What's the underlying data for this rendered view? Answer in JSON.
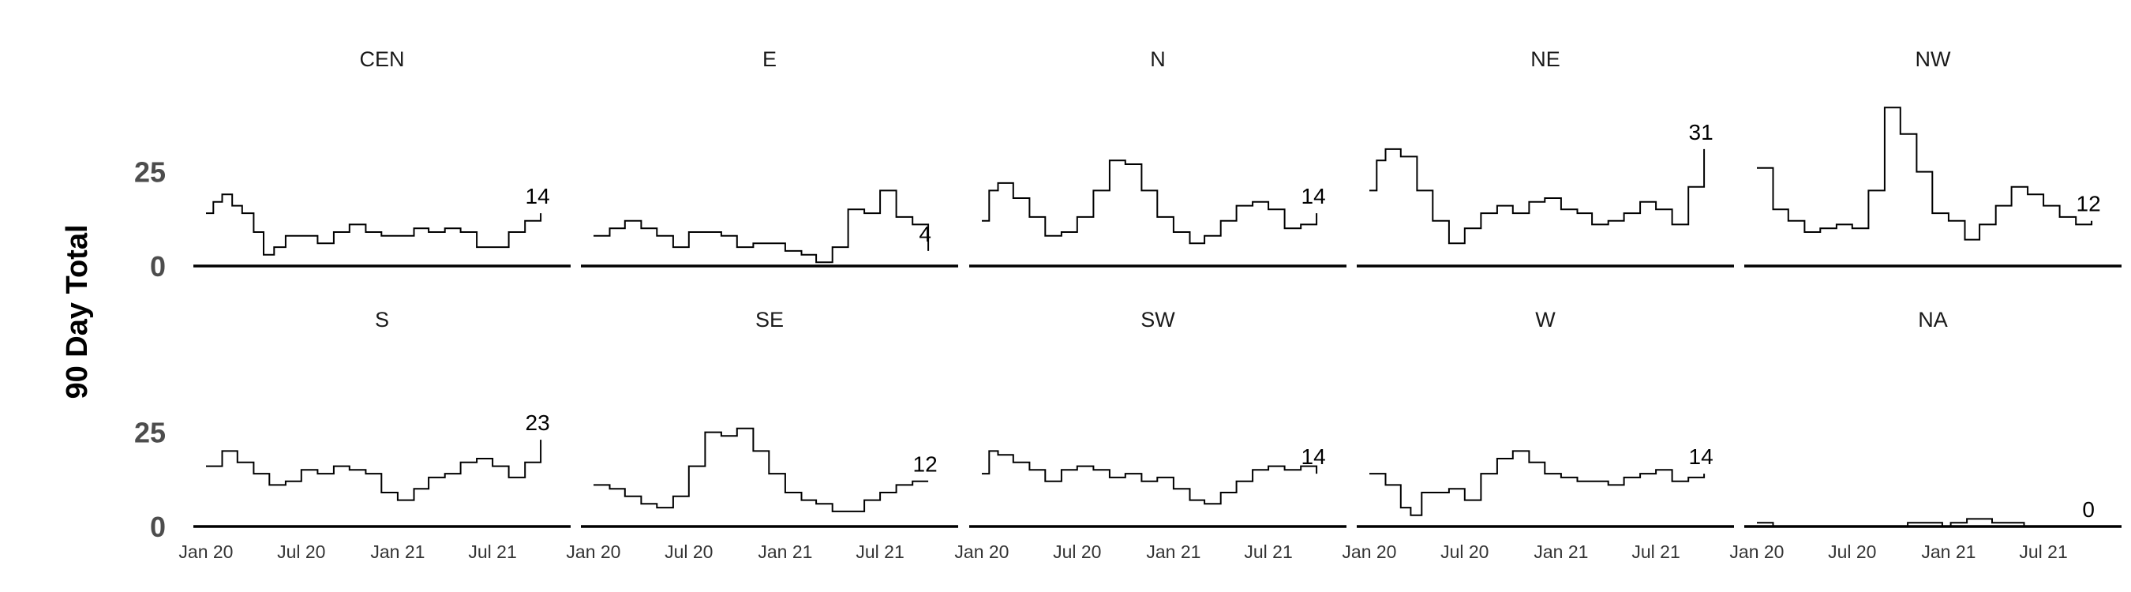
{
  "chart_data": {
    "type": "line",
    "layout": "facet-grid",
    "ylabel": "90 Day Total",
    "ylim": [
      0,
      45
    ],
    "y_ticks": [
      {
        "value": 0,
        "label": "0"
      },
      {
        "value": 25,
        "label": "25"
      }
    ],
    "x_range": [
      "2019-12-20",
      "2021-11-15"
    ],
    "x_ticks": [
      {
        "date": "2020-01-01",
        "label": "Jan 20"
      },
      {
        "date": "2020-07-01",
        "label": "Jul 20"
      },
      {
        "date": "2021-01-01",
        "label": "Jan 21"
      },
      {
        "date": "2021-07-01",
        "label": "Jul 21"
      }
    ],
    "grid": false,
    "legend": "none",
    "facets": [
      {
        "title": "CEN",
        "end_label": "14",
        "series": [
          [
            "2020-01-01",
            14
          ],
          [
            "2020-01-15",
            17
          ],
          [
            "2020-02-01",
            19
          ],
          [
            "2020-02-20",
            16
          ],
          [
            "2020-03-10",
            14
          ],
          [
            "2020-04-01",
            9
          ],
          [
            "2020-04-20",
            3
          ],
          [
            "2020-05-10",
            5
          ],
          [
            "2020-06-01",
            8
          ],
          [
            "2020-07-01",
            8
          ],
          [
            "2020-08-01",
            6
          ],
          [
            "2020-09-01",
            9
          ],
          [
            "2020-10-01",
            11
          ],
          [
            "2020-11-01",
            9
          ],
          [
            "2020-12-01",
            8
          ],
          [
            "2021-01-01",
            8
          ],
          [
            "2021-02-01",
            10
          ],
          [
            "2021-03-01",
            9
          ],
          [
            "2021-04-01",
            10
          ],
          [
            "2021-05-01",
            9
          ],
          [
            "2021-06-01",
            5
          ],
          [
            "2021-07-01",
            5
          ],
          [
            "2021-08-01",
            9
          ],
          [
            "2021-09-01",
            12
          ],
          [
            "2021-10-01",
            14
          ]
        ]
      },
      {
        "title": "E",
        "end_label": "4",
        "series": [
          [
            "2020-01-01",
            8
          ],
          [
            "2020-02-01",
            10
          ],
          [
            "2020-03-01",
            12
          ],
          [
            "2020-04-01",
            10
          ],
          [
            "2020-05-01",
            8
          ],
          [
            "2020-06-01",
            5
          ],
          [
            "2020-07-01",
            9
          ],
          [
            "2020-08-01",
            9
          ],
          [
            "2020-09-01",
            8
          ],
          [
            "2020-10-01",
            5
          ],
          [
            "2020-11-01",
            6
          ],
          [
            "2020-12-01",
            6
          ],
          [
            "2021-01-01",
            4
          ],
          [
            "2021-02-01",
            3
          ],
          [
            "2021-03-01",
            1
          ],
          [
            "2021-04-01",
            5
          ],
          [
            "2021-05-01",
            15
          ],
          [
            "2021-06-01",
            14
          ],
          [
            "2021-07-01",
            20
          ],
          [
            "2021-08-01",
            13
          ],
          [
            "2021-09-01",
            11
          ],
          [
            "2021-10-01",
            4
          ]
        ]
      },
      {
        "title": "N",
        "end_label": "14",
        "series": [
          [
            "2020-01-01",
            12
          ],
          [
            "2020-01-15",
            20
          ],
          [
            "2020-02-01",
            22
          ],
          [
            "2020-03-01",
            18
          ],
          [
            "2020-04-01",
            13
          ],
          [
            "2020-05-01",
            8
          ],
          [
            "2020-06-01",
            9
          ],
          [
            "2020-07-01",
            13
          ],
          [
            "2020-08-01",
            20
          ],
          [
            "2020-09-01",
            28
          ],
          [
            "2020-10-01",
            27
          ],
          [
            "2020-11-01",
            20
          ],
          [
            "2020-12-01",
            13
          ],
          [
            "2021-01-01",
            9
          ],
          [
            "2021-02-01",
            6
          ],
          [
            "2021-03-01",
            8
          ],
          [
            "2021-04-01",
            12
          ],
          [
            "2021-05-01",
            16
          ],
          [
            "2021-06-01",
            17
          ],
          [
            "2021-07-01",
            15
          ],
          [
            "2021-08-01",
            10
          ],
          [
            "2021-09-01",
            11
          ],
          [
            "2021-10-01",
            14
          ]
        ]
      },
      {
        "title": "NE",
        "end_label": "31",
        "series": [
          [
            "2020-01-01",
            20
          ],
          [
            "2020-01-15",
            28
          ],
          [
            "2020-02-01",
            31
          ],
          [
            "2020-03-01",
            29
          ],
          [
            "2020-04-01",
            20
          ],
          [
            "2020-05-01",
            12
          ],
          [
            "2020-06-01",
            6
          ],
          [
            "2020-07-01",
            10
          ],
          [
            "2020-08-01",
            14
          ],
          [
            "2020-09-01",
            16
          ],
          [
            "2020-10-01",
            14
          ],
          [
            "2020-11-01",
            17
          ],
          [
            "2020-12-01",
            18
          ],
          [
            "2021-01-01",
            15
          ],
          [
            "2021-02-01",
            14
          ],
          [
            "2021-03-01",
            11
          ],
          [
            "2021-04-01",
            12
          ],
          [
            "2021-05-01",
            14
          ],
          [
            "2021-06-01",
            17
          ],
          [
            "2021-07-01",
            15
          ],
          [
            "2021-08-01",
            11
          ],
          [
            "2021-09-01",
            21
          ],
          [
            "2021-10-01",
            31
          ]
        ]
      },
      {
        "title": "NW",
        "end_label": "12",
        "series": [
          [
            "2020-01-01",
            26
          ],
          [
            "2020-02-01",
            15
          ],
          [
            "2020-03-01",
            12
          ],
          [
            "2020-04-01",
            9
          ],
          [
            "2020-05-01",
            10
          ],
          [
            "2020-06-01",
            11
          ],
          [
            "2020-07-01",
            10
          ],
          [
            "2020-08-01",
            20
          ],
          [
            "2020-09-01",
            42
          ],
          [
            "2020-10-01",
            35
          ],
          [
            "2020-11-01",
            25
          ],
          [
            "2020-12-01",
            14
          ],
          [
            "2021-01-01",
            12
          ],
          [
            "2021-02-01",
            7
          ],
          [
            "2021-03-01",
            11
          ],
          [
            "2021-04-01",
            16
          ],
          [
            "2021-05-01",
            21
          ],
          [
            "2021-06-01",
            19
          ],
          [
            "2021-07-01",
            16
          ],
          [
            "2021-08-01",
            13
          ],
          [
            "2021-09-01",
            11
          ],
          [
            "2021-10-01",
            12
          ]
        ]
      },
      {
        "title": "S",
        "end_label": "23",
        "series": [
          [
            "2020-01-01",
            16
          ],
          [
            "2020-02-01",
            20
          ],
          [
            "2020-03-01",
            17
          ],
          [
            "2020-04-01",
            14
          ],
          [
            "2020-05-01",
            11
          ],
          [
            "2020-06-01",
            12
          ],
          [
            "2020-07-01",
            15
          ],
          [
            "2020-08-01",
            14
          ],
          [
            "2020-09-01",
            16
          ],
          [
            "2020-10-01",
            15
          ],
          [
            "2020-11-01",
            14
          ],
          [
            "2020-12-01",
            9
          ],
          [
            "2021-01-01",
            7
          ],
          [
            "2021-02-01",
            10
          ],
          [
            "2021-03-01",
            13
          ],
          [
            "2021-04-01",
            14
          ],
          [
            "2021-05-01",
            17
          ],
          [
            "2021-06-01",
            18
          ],
          [
            "2021-07-01",
            16
          ],
          [
            "2021-08-01",
            13
          ],
          [
            "2021-09-01",
            17
          ],
          [
            "2021-10-01",
            23
          ]
        ]
      },
      {
        "title": "SE",
        "end_label": "12",
        "series": [
          [
            "2020-01-01",
            11
          ],
          [
            "2020-02-01",
            10
          ],
          [
            "2020-03-01",
            8
          ],
          [
            "2020-04-01",
            6
          ],
          [
            "2020-05-01",
            5
          ],
          [
            "2020-06-01",
            8
          ],
          [
            "2020-07-01",
            16
          ],
          [
            "2020-08-01",
            25
          ],
          [
            "2020-09-01",
            24
          ],
          [
            "2020-10-01",
            26
          ],
          [
            "2020-11-01",
            20
          ],
          [
            "2020-12-01",
            14
          ],
          [
            "2021-01-01",
            9
          ],
          [
            "2021-02-01",
            7
          ],
          [
            "2021-03-01",
            6
          ],
          [
            "2021-04-01",
            4
          ],
          [
            "2021-05-01",
            4
          ],
          [
            "2021-06-01",
            7
          ],
          [
            "2021-07-01",
            9
          ],
          [
            "2021-08-01",
            11
          ],
          [
            "2021-09-01",
            12
          ],
          [
            "2021-10-01",
            12
          ]
        ]
      },
      {
        "title": "SW",
        "end_label": "14",
        "series": [
          [
            "2020-01-01",
            14
          ],
          [
            "2020-01-15",
            20
          ],
          [
            "2020-02-01",
            19
          ],
          [
            "2020-03-01",
            17
          ],
          [
            "2020-04-01",
            15
          ],
          [
            "2020-05-01",
            12
          ],
          [
            "2020-06-01",
            15
          ],
          [
            "2020-07-01",
            16
          ],
          [
            "2020-08-01",
            15
          ],
          [
            "2020-09-01",
            13
          ],
          [
            "2020-10-01",
            14
          ],
          [
            "2020-11-01",
            12
          ],
          [
            "2020-12-01",
            13
          ],
          [
            "2021-01-01",
            10
          ],
          [
            "2021-02-01",
            7
          ],
          [
            "2021-03-01",
            6
          ],
          [
            "2021-04-01",
            9
          ],
          [
            "2021-05-01",
            12
          ],
          [
            "2021-06-01",
            15
          ],
          [
            "2021-07-01",
            16
          ],
          [
            "2021-08-01",
            15
          ],
          [
            "2021-09-01",
            16
          ],
          [
            "2021-10-01",
            14
          ]
        ]
      },
      {
        "title": "W",
        "end_label": "14",
        "series": [
          [
            "2020-01-01",
            14
          ],
          [
            "2020-02-01",
            11
          ],
          [
            "2020-03-01",
            5
          ],
          [
            "2020-03-20",
            3
          ],
          [
            "2020-04-10",
            9
          ],
          [
            "2020-05-01",
            9
          ],
          [
            "2020-06-01",
            10
          ],
          [
            "2020-07-01",
            7
          ],
          [
            "2020-08-01",
            14
          ],
          [
            "2020-09-01",
            18
          ],
          [
            "2020-10-01",
            20
          ],
          [
            "2020-11-01",
            17
          ],
          [
            "2020-12-01",
            14
          ],
          [
            "2021-01-01",
            13
          ],
          [
            "2021-02-01",
            12
          ],
          [
            "2021-03-01",
            12
          ],
          [
            "2021-04-01",
            11
          ],
          [
            "2021-05-01",
            13
          ],
          [
            "2021-06-01",
            14
          ],
          [
            "2021-07-01",
            15
          ],
          [
            "2021-08-01",
            12
          ],
          [
            "2021-09-01",
            13
          ],
          [
            "2021-10-01",
            14
          ]
        ]
      },
      {
        "title": "NA",
        "end_label": "0",
        "series": [
          [
            "2020-01-01",
            1
          ],
          [
            "2020-01-20",
            1
          ],
          [
            "2020-02-01",
            0
          ],
          [
            "2020-10-01",
            0
          ],
          [
            "2020-10-15",
            1
          ],
          [
            "2020-12-15",
            1
          ],
          [
            "2020-12-20",
            0
          ],
          [
            "2021-01-01",
            0
          ],
          [
            "2021-01-05",
            1
          ],
          [
            "2021-02-01",
            1
          ],
          [
            "2021-02-05",
            2
          ],
          [
            "2021-03-20",
            2
          ],
          [
            "2021-03-25",
            1
          ],
          [
            "2021-05-20",
            1
          ],
          [
            "2021-05-25",
            0
          ],
          [
            "2021-10-01",
            0
          ]
        ]
      }
    ]
  }
}
